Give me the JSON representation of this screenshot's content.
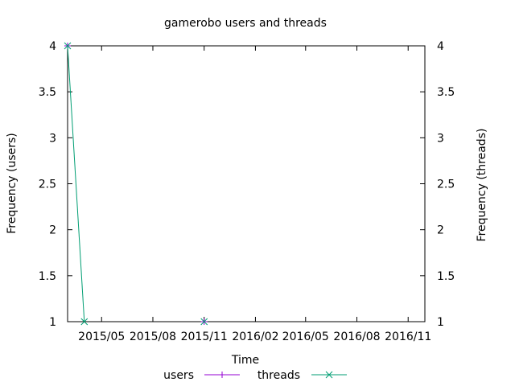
{
  "chart_data": {
    "type": "line",
    "title": "gamerobo users and threads",
    "xlabel": "Time",
    "ylabel": "Frequency (users)",
    "y2label": "Frequency (threads)",
    "x_range": [
      "2015-03-01",
      "2016-12-01"
    ],
    "ylim": [
      1,
      4
    ],
    "y2lim": [
      1,
      4
    ],
    "x_ticks": [
      {
        "date": "2015-05-01",
        "label": "2015/05"
      },
      {
        "date": "2015-08-01",
        "label": "2015/08"
      },
      {
        "date": "2015-11-01",
        "label": "2015/11"
      },
      {
        "date": "2016-02-01",
        "label": "2016/02"
      },
      {
        "date": "2016-05-01",
        "label": "2016/05"
      },
      {
        "date": "2016-08-01",
        "label": "2016/08"
      },
      {
        "date": "2016-11-01",
        "label": "2016/11"
      }
    ],
    "y_ticks": [
      "1",
      "1.5",
      "2",
      "2.5",
      "3",
      "3.5",
      "4"
    ],
    "y2_ticks": [
      "1",
      "1.5",
      "2",
      "2.5",
      "3",
      "3.5",
      "4"
    ],
    "grid": false,
    "legend_position": "bottom",
    "series": [
      {
        "name": "users",
        "color": "#9400d3",
        "marker": "plus",
        "points": [
          {
            "x": "2015-03-01",
            "y": 4
          },
          {
            "x": "2015-11-01",
            "y": 1
          }
        ],
        "lines": false
      },
      {
        "name": "threads",
        "color": "#009e73",
        "marker": "cross",
        "points": [
          {
            "x": "2015-03-01",
            "y": 4
          },
          {
            "x": "2015-03-31",
            "y": 1
          },
          {
            "x": "2015-11-01",
            "y": 1
          }
        ],
        "lines": true,
        "connect": [
          [
            0,
            1
          ]
        ]
      }
    ]
  }
}
